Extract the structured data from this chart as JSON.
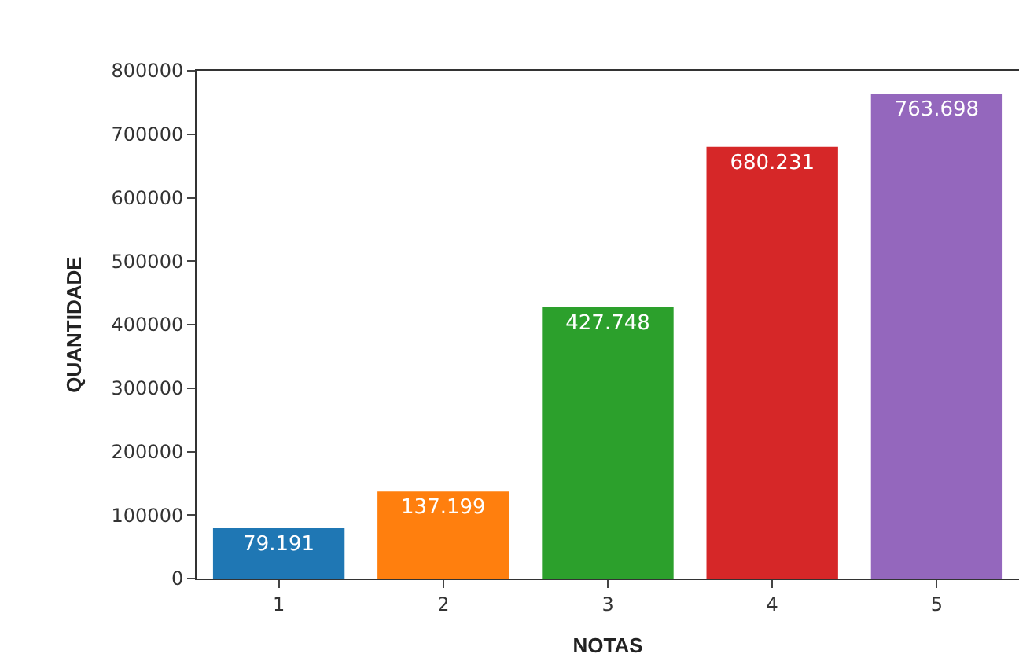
{
  "chart_data": {
    "type": "bar",
    "xlabel": "NOTAS",
    "ylabel": "QUANTIDADE",
    "categories": [
      "1",
      "2",
      "3",
      "4",
      "5"
    ],
    "values": [
      79191,
      137199,
      427748,
      680231,
      763698
    ],
    "value_labels": [
      "79.191",
      "137.199",
      "427.748",
      "680.231",
      "763.698"
    ],
    "colors": [
      "#1f77b4",
      "#ff7f0e",
      "#2ca02c",
      "#d62728",
      "#9467bd"
    ],
    "ylim": [
      0,
      800000
    ],
    "yticks": [
      0,
      100000,
      200000,
      300000,
      400000,
      500000,
      600000,
      700000,
      800000
    ]
  }
}
